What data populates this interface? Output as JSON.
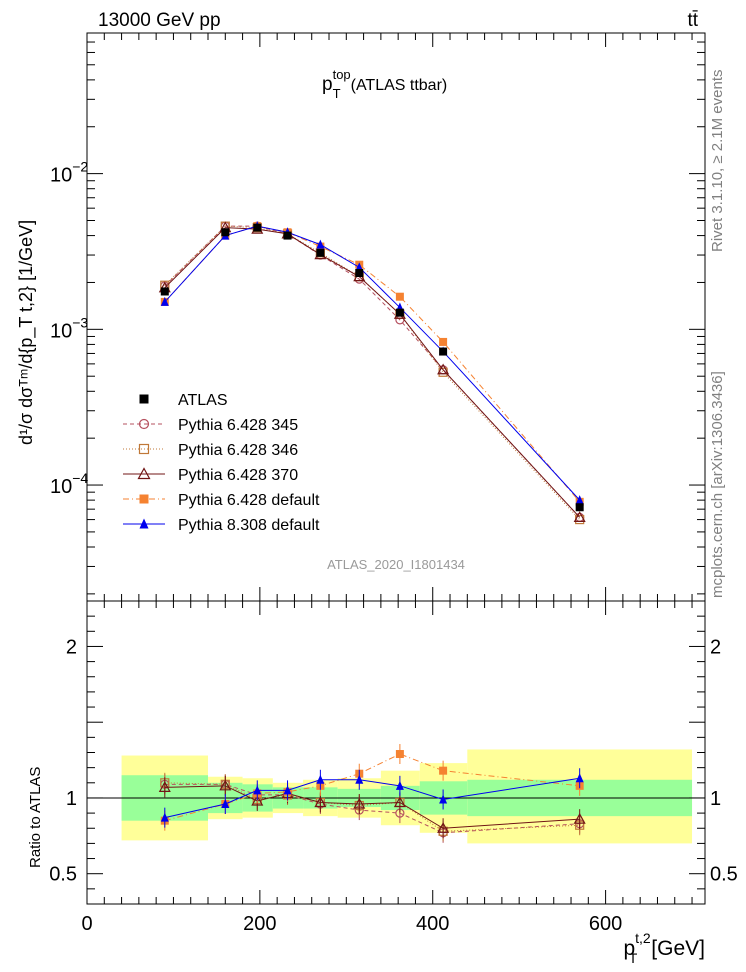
{
  "header": {
    "left": "13000 GeV pp",
    "right": "tt̄"
  },
  "side_labels": {
    "top": "Rivet 3.1.10, ≥ 2.1M events",
    "bottom": "mcplots.cern.ch [arXiv:1306.3436]"
  },
  "main_plot": {
    "title_main": "p",
    "title_sup": "top",
    "title_sub": "T",
    "title_rest": "(ATLAS ttbar)",
    "ylabel": "d¹/σ dσᵀᵐ/d{p_T t,2} [1/GeV]",
    "analysis": "ATLAS_2020_I1801434",
    "y_ticks": [
      {
        "label_base": "10",
        "label_exp": "−2",
        "value": 0.01
      },
      {
        "label_base": "10",
        "label_exp": "−3",
        "value": 0.001
      },
      {
        "label_base": "10",
        "label_exp": "−4",
        "value": 0.0001
      }
    ]
  },
  "ratio_plot": {
    "ylabel": "Ratio to ATLAS",
    "y_ticks": [
      {
        "label": "2",
        "value": 2
      },
      {
        "label": "1",
        "value": 1
      },
      {
        "label": "0.5",
        "value": 0.5
      }
    ],
    "x_ticks": [
      {
        "label": "0",
        "value": 0
      },
      {
        "label": "200",
        "value": 200
      },
      {
        "label": "400",
        "value": 400
      },
      {
        "label": "600",
        "value": 600
      }
    ],
    "xlabel_main": "p",
    "xlabel_sup": "t,2",
    "xlabel_sub": "T",
    "xlabel_rest": "[GeV]"
  },
  "legend": [
    {
      "label": "ATLAS",
      "color": "#000000",
      "marker": "filled-square",
      "line": "none"
    },
    {
      "label": "Pythia 6.428 345",
      "color": "#b5505f",
      "marker": "open-circle",
      "line": "dashed"
    },
    {
      "label": "Pythia 6.428 346",
      "color": "#c07838",
      "marker": "open-square",
      "line": "dotted"
    },
    {
      "label": "Pythia 6.428 370",
      "color": "#701515",
      "marker": "open-triangle",
      "line": "solid"
    },
    {
      "label": "Pythia 6.428 default",
      "color": "#f58231",
      "marker": "filled-square",
      "line": "dashdot"
    },
    {
      "label": "Pythia 8.308 default",
      "color": "#0000ee",
      "marker": "filled-triangle",
      "line": "solid"
    }
  ],
  "chart_data": {
    "type": "scatter",
    "x_range": [
      0,
      715
    ],
    "y_range_main": [
      1.8e-05,
      0.08
    ],
    "y_scale_main": "log",
    "y_range_ratio": [
      0.3,
      2.3
    ],
    "bins": [
      {
        "lo": 40,
        "hi": 140
      },
      {
        "lo": 140,
        "hi": 180
      },
      {
        "lo": 180,
        "hi": 215
      },
      {
        "lo": 215,
        "hi": 250
      },
      {
        "lo": 250,
        "hi": 290
      },
      {
        "lo": 290,
        "hi": 340
      },
      {
        "lo": 340,
        "hi": 385
      },
      {
        "lo": 385,
        "hi": 440
      },
      {
        "lo": 440,
        "hi": 700
      }
    ],
    "x": [
      90,
      160,
      197,
      232,
      270,
      315,
      362,
      412,
      570
    ],
    "bands": {
      "inner": [
        [
          0.85,
          1.15
        ],
        [
          0.9,
          1.1
        ],
        [
          0.91,
          1.09
        ],
        [
          0.93,
          1.07
        ],
        [
          0.93,
          1.07
        ],
        [
          0.94,
          1.06
        ],
        [
          0.92,
          1.08
        ],
        [
          0.89,
          1.11
        ],
        [
          0.88,
          1.12
        ]
      ],
      "outer": [
        [
          0.72,
          1.28
        ],
        [
          0.86,
          1.14
        ],
        [
          0.87,
          1.13
        ],
        [
          0.9,
          1.1
        ],
        [
          0.88,
          1.12
        ],
        [
          0.87,
          1.13
        ],
        [
          0.82,
          1.18
        ],
        [
          0.77,
          1.23
        ],
        [
          0.7,
          1.32
        ]
      ]
    },
    "series": [
      {
        "name": "ATLAS",
        "values": [
          0.00175,
          0.0042,
          0.0045,
          0.004,
          0.0031,
          0.0023,
          0.00128,
          0.00072,
          7.2e-05
        ],
        "ratio": [
          1,
          1,
          1,
          1,
          1,
          1,
          1,
          1,
          1
        ],
        "err": [
          5e-05,
          0.0001,
          0.0001,
          0.0001,
          8e-05,
          6e-05,
          4e-05,
          3e-05,
          6e-06
        ]
      },
      {
        "name": "Pythia 6.428 345",
        "values": [
          0.0019,
          0.0046,
          0.0046,
          0.0041,
          0.003,
          0.0021,
          0.00115,
          0.00055,
          6.2e-05
        ],
        "ratio": [
          1.09,
          1.09,
          1.02,
          1.02,
          0.96,
          0.92,
          0.9,
          0.77,
          0.83
        ],
        "err": [
          5e-05,
          0.0001,
          0.0001,
          0.0001,
          8e-05,
          6e-05,
          4e-05,
          3e-05,
          6e-06
        ]
      },
      {
        "name": "Pythia 6.428 346",
        "values": [
          0.00192,
          0.0046,
          0.0045,
          0.0041,
          0.0031,
          0.00218,
          0.00125,
          0.00053,
          6e-05
        ],
        "ratio": [
          1.1,
          1.09,
          0.99,
          1.02,
          0.97,
          0.95,
          0.97,
          0.78,
          0.82
        ],
        "err": [
          5e-05,
          0.0001,
          0.0001,
          0.0001,
          8e-05,
          6e-05,
          4e-05,
          3e-05,
          6e-06
        ]
      },
      {
        "name": "Pythia 6.428 370",
        "values": [
          0.00185,
          0.0045,
          0.0044,
          0.0041,
          0.00302,
          0.00218,
          0.00125,
          0.00055,
          6.2e-05
        ],
        "ratio": [
          1.07,
          1.08,
          0.98,
          1.03,
          0.97,
          0.96,
          0.97,
          0.8,
          0.86
        ],
        "err": [
          5e-05,
          0.0001,
          0.0001,
          0.0001,
          8e-05,
          6e-05,
          4e-05,
          3e-05,
          6e-06
        ]
      },
      {
        "name": "Pythia 6.428 default",
        "values": [
          0.0015,
          0.004,
          0.0046,
          0.0042,
          0.0034,
          0.0026,
          0.00162,
          0.00083,
          7.8e-05
        ],
        "ratio": [
          0.85,
          0.96,
          1.03,
          1.04,
          1.08,
          1.16,
          1.29,
          1.18,
          1.08
        ],
        "err": [
          5e-05,
          0.0001,
          0.0001,
          0.0001,
          8e-05,
          6e-05,
          4e-05,
          3e-05,
          6e-06
        ]
      },
      {
        "name": "Pythia 8.308 default",
        "values": [
          0.0015,
          0.004,
          0.0046,
          0.0042,
          0.0035,
          0.0025,
          0.00138,
          0.00072,
          8e-05
        ],
        "ratio": [
          0.87,
          0.96,
          1.05,
          1.05,
          1.12,
          1.12,
          1.08,
          0.99,
          1.13
        ],
        "err": [
          5e-05,
          0.0001,
          0.0001,
          0.0001,
          8e-05,
          6e-05,
          4e-05,
          3e-05,
          6e-06
        ]
      }
    ]
  }
}
